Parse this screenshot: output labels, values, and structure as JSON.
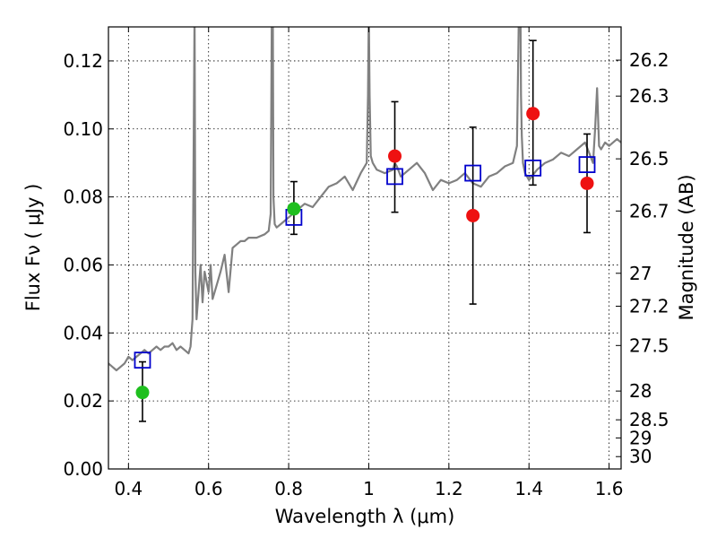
{
  "chart_data": {
    "type": "scatter",
    "xlabel": "Wavelength  λ (μm)",
    "ylabel": "Flux  Fν  ( μJy )",
    "ylabel_right": "Magnitude (AB)",
    "xlim": [
      0.35,
      1.63
    ],
    "ylim": [
      0.0,
      0.13
    ],
    "xticks": [
      0.4,
      0.6,
      0.8,
      1.0,
      1.2,
      1.4,
      1.6
    ],
    "xtick_labels": [
      "0.4",
      "0.6",
      "0.8",
      "1",
      "1.2",
      "1.4",
      "1.6"
    ],
    "yticks": [
      0.0,
      0.02,
      0.04,
      0.06,
      0.08,
      0.1,
      0.12
    ],
    "ytick_labels": [
      "0.00",
      "0.02",
      "0.04",
      "0.06",
      "0.08",
      "0.10",
      "0.12"
    ],
    "right_ticks": [
      {
        "mag": 26.2,
        "label": "26.2"
      },
      {
        "mag": 26.3,
        "label": "26.3"
      },
      {
        "mag": 26.5,
        "label": "26.5"
      },
      {
        "mag": 26.7,
        "label": "26.7"
      },
      {
        "mag": 27.0,
        "label": "27"
      },
      {
        "mag": 27.2,
        "label": "27.2"
      },
      {
        "mag": 27.5,
        "label": "27.5"
      },
      {
        "mag": 28.0,
        "label": "28"
      },
      {
        "mag": 28.5,
        "label": "28.5"
      },
      {
        "mag": 29.0,
        "label": "29"
      },
      {
        "mag": 30.0,
        "label": "30"
      }
    ],
    "grid": true,
    "colors": {
      "spectrum": "#808080",
      "green": "#1fbf1f",
      "red": "#ee1111",
      "model": "#0000cc",
      "error": "#000000"
    },
    "spectrum": {
      "x": [
        0.35,
        0.36,
        0.37,
        0.38,
        0.39,
        0.4,
        0.41,
        0.42,
        0.43,
        0.44,
        0.45,
        0.46,
        0.47,
        0.48,
        0.49,
        0.5,
        0.51,
        0.52,
        0.53,
        0.54,
        0.55,
        0.555,
        0.56,
        0.562,
        0.565,
        0.567,
        0.57,
        0.58,
        0.585,
        0.59,
        0.6,
        0.605,
        0.61,
        0.62,
        0.63,
        0.64,
        0.65,
        0.66,
        0.67,
        0.68,
        0.69,
        0.7,
        0.72,
        0.74,
        0.75,
        0.755,
        0.758,
        0.76,
        0.762,
        0.765,
        0.77,
        0.78,
        0.8,
        0.82,
        0.84,
        0.86,
        0.88,
        0.9,
        0.92,
        0.94,
        0.96,
        0.98,
        0.995,
        0.998,
        1.0,
        1.002,
        1.005,
        1.01,
        1.02,
        1.04,
        1.06,
        1.065,
        1.07,
        1.08,
        1.1,
        1.12,
        1.14,
        1.16,
        1.18,
        1.2,
        1.22,
        1.24,
        1.26,
        1.28,
        1.3,
        1.32,
        1.34,
        1.36,
        1.37,
        1.375,
        1.378,
        1.38,
        1.382,
        1.385,
        1.39,
        1.4,
        1.42,
        1.44,
        1.46,
        1.48,
        1.5,
        1.52,
        1.54,
        1.56,
        1.565,
        1.57,
        1.575,
        1.58,
        1.59,
        1.6,
        1.62,
        1.63
      ],
      "y": [
        0.031,
        0.03,
        0.029,
        0.03,
        0.031,
        0.033,
        0.032,
        0.033,
        0.034,
        0.035,
        0.034,
        0.035,
        0.036,
        0.035,
        0.036,
        0.036,
        0.037,
        0.035,
        0.036,
        0.035,
        0.034,
        0.036,
        0.044,
        0.08,
        0.135,
        0.058,
        0.044,
        0.06,
        0.049,
        0.058,
        0.052,
        0.06,
        0.05,
        0.054,
        0.058,
        0.063,
        0.052,
        0.065,
        0.066,
        0.067,
        0.067,
        0.068,
        0.068,
        0.069,
        0.07,
        0.075,
        0.135,
        0.15,
        0.08,
        0.072,
        0.071,
        0.072,
        0.074,
        0.076,
        0.078,
        0.077,
        0.08,
        0.083,
        0.084,
        0.086,
        0.082,
        0.087,
        0.09,
        0.11,
        0.135,
        0.11,
        0.092,
        0.09,
        0.088,
        0.087,
        0.088,
        0.09,
        0.089,
        0.086,
        0.088,
        0.09,
        0.087,
        0.082,
        0.085,
        0.084,
        0.085,
        0.087,
        0.084,
        0.083,
        0.086,
        0.087,
        0.089,
        0.09,
        0.095,
        0.135,
        0.15,
        0.11,
        0.098,
        0.09,
        0.087,
        0.085,
        0.088,
        0.09,
        0.091,
        0.093,
        0.092,
        0.094,
        0.096,
        0.09,
        0.1,
        0.112,
        0.095,
        0.094,
        0.096,
        0.095,
        0.097,
        0.096
      ]
    },
    "green_points": [
      {
        "x": 0.435,
        "y": 0.0225,
        "yerr": [
          0.014,
          0.0315
        ]
      },
      {
        "x": 0.813,
        "y": 0.0765,
        "yerr": [
          0.069,
          0.0845
        ]
      }
    ],
    "red_points": [
      {
        "x": 1.065,
        "y": 0.092,
        "yerr": [
          0.0755,
          0.108
        ]
      },
      {
        "x": 1.26,
        "y": 0.0745,
        "yerr": [
          0.0485,
          0.1005
        ]
      },
      {
        "x": 1.41,
        "y": 0.1045,
        "yerr": [
          0.0835,
          0.126
        ]
      },
      {
        "x": 1.545,
        "y": 0.084,
        "yerr": [
          0.0695,
          0.0985
        ]
      }
    ],
    "model_points": [
      {
        "x": 0.435,
        "y": 0.032
      },
      {
        "x": 0.813,
        "y": 0.074
      },
      {
        "x": 1.065,
        "y": 0.086
      },
      {
        "x": 1.26,
        "y": 0.087
      },
      {
        "x": 1.41,
        "y": 0.0885
      },
      {
        "x": 1.545,
        "y": 0.0895
      }
    ]
  }
}
